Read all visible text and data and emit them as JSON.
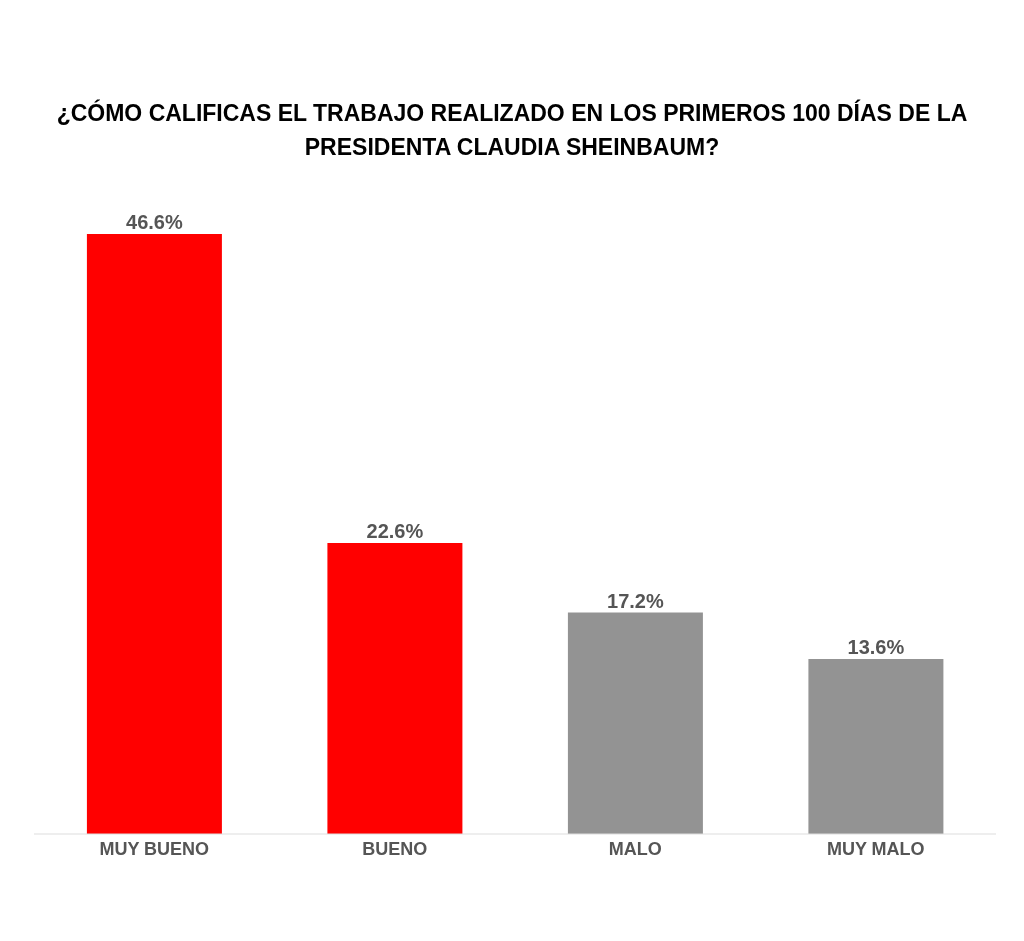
{
  "chart_data": {
    "type": "bar",
    "title": "¿CÓMO CALIFICAS EL TRABAJO REALIZADO EN LOS PRIMEROS 100 DÍAS DE LA PRESIDENTA CLAUDIA SHEINBAUM?",
    "categories": [
      "MUY BUENO",
      "BUENO",
      "MALO",
      "MUY MALO"
    ],
    "values": [
      46.6,
      22.6,
      17.2,
      13.6
    ],
    "value_labels": [
      "46.6%",
      "22.6%",
      "17.2%",
      "13.6%"
    ],
    "colors": [
      "#ff0000",
      "#ff0000",
      "#939393",
      "#939393"
    ]
  }
}
